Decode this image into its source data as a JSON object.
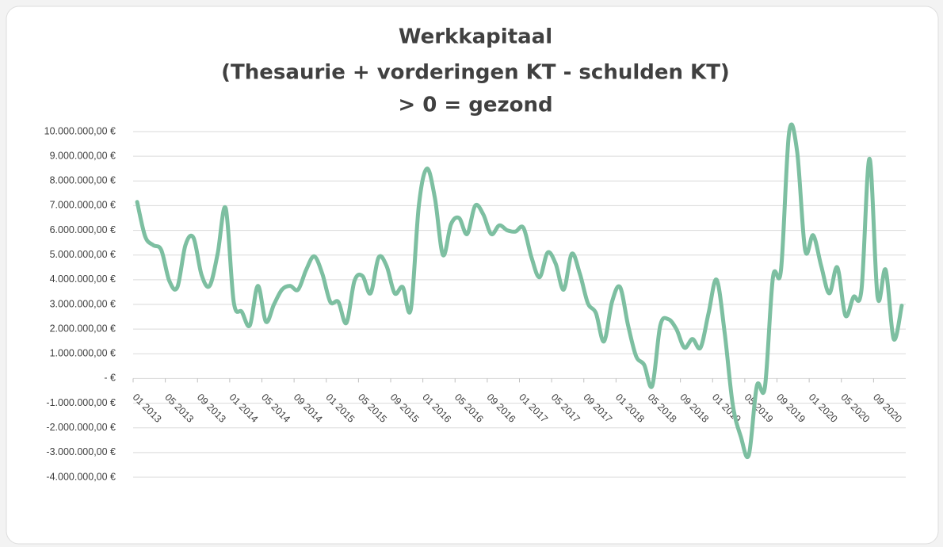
{
  "chart_data": {
    "type": "line",
    "title": [
      "Werkkapitaal",
      "(Thesaurie + vorderingen KT - schulden KT)",
      "> 0 = gezond"
    ],
    "categories": [
      "01 2013",
      null,
      null,
      null,
      "05 2013",
      null,
      null,
      null,
      "09 2013",
      null,
      null,
      null,
      "01 2014",
      null,
      null,
      null,
      "05 2014",
      null,
      null,
      null,
      "09 2014",
      null,
      null,
      null,
      "01 2015",
      null,
      null,
      null,
      "05 2015",
      null,
      null,
      null,
      "09 2015",
      null,
      null,
      null,
      "01 2016",
      null,
      null,
      null,
      "05 2016",
      null,
      null,
      null,
      "09 2016",
      null,
      null,
      null,
      "01 2017",
      null,
      null,
      null,
      "05 2017",
      null,
      null,
      null,
      "09 2017",
      null,
      null,
      null,
      "01 2018",
      null,
      null,
      null,
      "05 2018",
      null,
      null,
      null,
      "09 2018",
      null,
      null,
      null,
      "01 2019",
      null,
      null,
      null,
      "05 2019",
      null,
      null,
      null,
      "09 2019",
      null,
      null,
      null,
      "01 2020",
      null,
      null,
      null,
      "05 2020",
      null,
      null,
      null,
      "09 2020",
      null,
      null,
      null
    ],
    "series": [
      {
        "name": "Werkkapitaal",
        "color": "#7dbfa1",
        "values": [
          7150000,
          5750000,
          5400000,
          5200000,
          3950000,
          3700000,
          5400000,
          5700000,
          4200000,
          3750000,
          5050000,
          6900000,
          3100000,
          2700000,
          2150000,
          3750000,
          2300000,
          3000000,
          3600000,
          3750000,
          3600000,
          4400000,
          4950000,
          4250000,
          3100000,
          3100000,
          2250000,
          3950000,
          4150000,
          3450000,
          4900000,
          4550000,
          3450000,
          3700000,
          2800000,
          7000000,
          8500000,
          7300000,
          5000000,
          6250000,
          6500000,
          5850000,
          7000000,
          6650000,
          5850000,
          6200000,
          6000000,
          5950000,
          6100000,
          4900000,
          4100000,
          5100000,
          4650000,
          3600000,
          5050000,
          4250000,
          3050000,
          2650000,
          1500000,
          3100000,
          3700000,
          2150000,
          900000,
          550000,
          -300000,
          2150000,
          2400000,
          2000000,
          1250000,
          1600000,
          1250000,
          2650000,
          4000000,
          1850000,
          -1050000,
          -2350000,
          -3100000,
          -300000,
          -350000,
          4100000,
          4400000,
          9950000,
          9200000,
          5200000,
          5800000,
          4550000,
          3450000,
          4500000,
          2550000,
          3300000,
          3600000,
          8900000,
          3300000,
          4400000,
          1600000,
          2950000
        ]
      }
    ],
    "ylim": [
      -4000000,
      10000000
    ],
    "yticks": [
      {
        "value": -4000000,
        "label": "-4.000.000,00 €"
      },
      {
        "value": -3000000,
        "label": "-3.000.000,00 €"
      },
      {
        "value": -2000000,
        "label": "-2.000.000,00 €"
      },
      {
        "value": -1000000,
        "label": "-1.000.000,00 €"
      },
      {
        "value": 0,
        "label": "-   €"
      },
      {
        "value": 1000000,
        "label": "1.000.000,00 €"
      },
      {
        "value": 2000000,
        "label": "2.000.000,00 €"
      },
      {
        "value": 3000000,
        "label": "3.000.000,00 €"
      },
      {
        "value": 4000000,
        "label": "4.000.000,00 €"
      },
      {
        "value": 5000000,
        "label": "5.000.000,00 €"
      },
      {
        "value": 6000000,
        "label": "6.000.000,00 €"
      },
      {
        "value": 7000000,
        "label": "7.000.000,00 €"
      },
      {
        "value": 8000000,
        "label": "8.000.000,00 €"
      },
      {
        "value": 9000000,
        "label": "9.000.000,00 €"
      },
      {
        "value": 10000000,
        "label": "10.000.000,00 €"
      }
    ],
    "grid": true
  }
}
